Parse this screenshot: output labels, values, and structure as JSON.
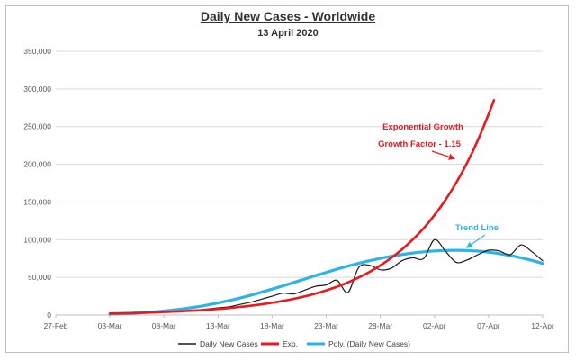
{
  "chart_data": {
    "type": "line",
    "title": "Daily New Cases - Worldwide",
    "subtitle": "13 April 2020",
    "xlabel": "",
    "ylabel": "",
    "x_tick_labels": [
      "27-Feb",
      "03-Mar",
      "08-Mar",
      "13-Mar",
      "18-Mar",
      "23-Mar",
      "28-Mar",
      "02-Apr",
      "07-Apr",
      "12-Apr"
    ],
    "xlim_days": [
      0,
      45
    ],
    "y_tick_labels": [
      "0",
      "50,000",
      "100,000",
      "150,000",
      "200,000",
      "250,000",
      "300,000",
      "350,000"
    ],
    "ylim": [
      0,
      350000
    ],
    "grid": "horizontal",
    "legend_position": "bottom",
    "colors": {
      "daily": "#1a1a1a",
      "exp": "#e8191f",
      "poly": "#2eb3e6",
      "grid": "#d9d9d9"
    },
    "series": [
      {
        "name": "Daily New Cases",
        "x": [
          5,
          6,
          7,
          8,
          9,
          10,
          11,
          12,
          13,
          14,
          15,
          16,
          17,
          18,
          19,
          20,
          21,
          22,
          23,
          24,
          25,
          26,
          27,
          28,
          29,
          30,
          31,
          32,
          33,
          34,
          35,
          36,
          37,
          38,
          39,
          40,
          41,
          42,
          43,
          44,
          45
        ],
        "values": [
          2000,
          2200,
          2400,
          2800,
          3300,
          4000,
          4800,
          5500,
          6500,
          8000,
          9500,
          11000,
          14000,
          17000,
          21000,
          25000,
          29000,
          28000,
          33000,
          38000,
          40000,
          46000,
          30000,
          63000,
          66000,
          60000,
          62000,
          72000,
          76000,
          75000,
          100000,
          85000,
          70000,
          73000,
          80000,
          86000,
          85000,
          80000,
          93000,
          84000,
          72000
        ]
      },
      {
        "name": "Exp.",
        "x": [
          5,
          6,
          7,
          8,
          9,
          10,
          11,
          12,
          13,
          14,
          15,
          16,
          17,
          18,
          19,
          20,
          21,
          22,
          23,
          24,
          25,
          26,
          27,
          28,
          29,
          30,
          31,
          32,
          33,
          34,
          35,
          36,
          37,
          38,
          39,
          40,
          40.5
        ],
        "values": [
          2000,
          2300,
          2645,
          3042,
          3498,
          4023,
          4626,
          5320,
          6118,
          7036,
          8091,
          9305,
          10701,
          12306,
          14152,
          16275,
          18716,
          21523,
          24752,
          28464,
          32734,
          37644,
          43291,
          49784,
          57252,
          65840,
          75716,
          87073,
          100134,
          115154,
          132427,
          152291,
          175134,
          201404,
          231615,
          266357,
          285000
        ]
      },
      {
        "name": "Poly. (Daily New Cases)",
        "x": [
          5,
          6,
          7,
          8,
          9,
          10,
          11,
          12,
          13,
          14,
          15,
          16,
          17,
          18,
          19,
          20,
          21,
          22,
          23,
          24,
          25,
          26,
          27,
          28,
          29,
          30,
          31,
          32,
          33,
          34,
          35,
          36,
          37,
          38,
          39,
          40,
          41,
          42,
          43,
          44,
          45
        ],
        "values": [
          1200,
          1600,
          2300,
          3100,
          4100,
          5400,
          6900,
          8700,
          10800,
          13200,
          16000,
          19100,
          22500,
          26200,
          30200,
          34400,
          38700,
          43200,
          47700,
          52200,
          56600,
          60900,
          64900,
          68600,
          72000,
          75100,
          77900,
          80300,
          82300,
          83900,
          85000,
          85700,
          85900,
          85600,
          84800,
          83400,
          81500,
          79000,
          76000,
          72500,
          68500
        ]
      }
    ],
    "annotations": [
      {
        "lines": [
          "Exponential Growth",
          "Growth Factor - 1.15"
        ],
        "color": "#e8191f",
        "arrow_to": [
          37,
          210000
        ]
      },
      {
        "lines": [
          "Trend Line"
        ],
        "color": "#2eb3e6",
        "arrow_to": [
          38,
          86000
        ]
      }
    ]
  }
}
